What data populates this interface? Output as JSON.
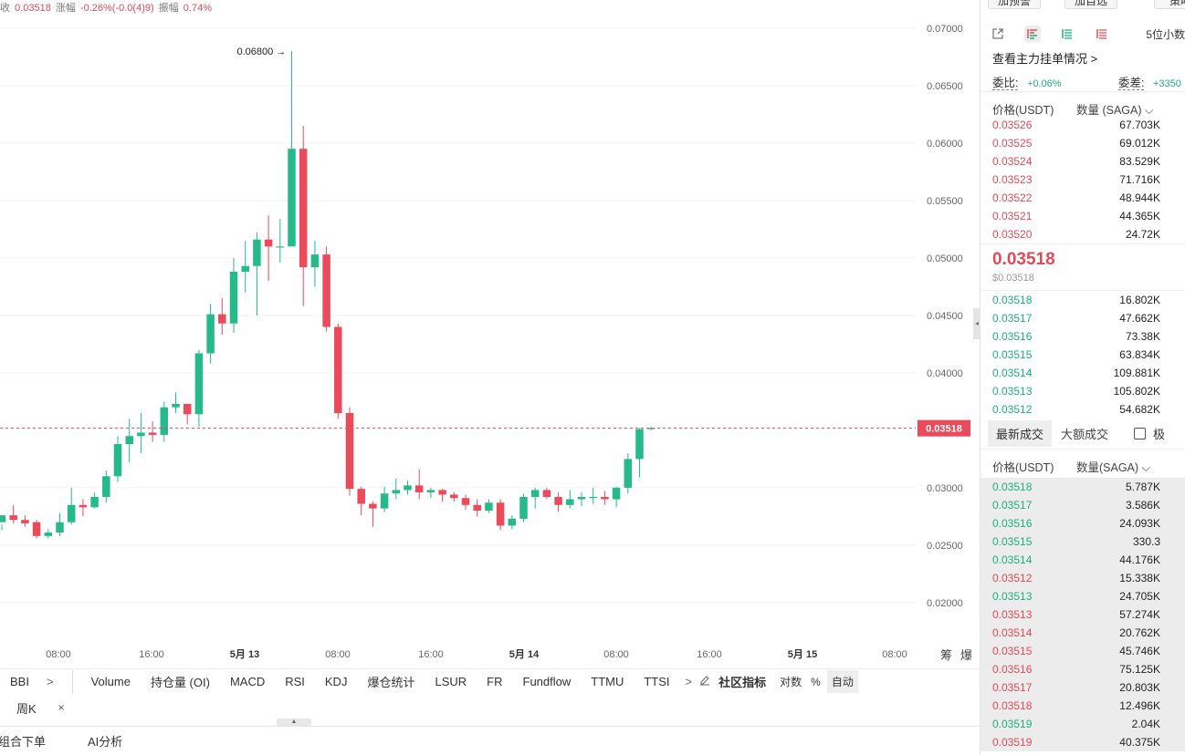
{
  "header": {
    "prefix": "收",
    "close_value": "0.03518",
    "change_label": "涨幅",
    "change_value": "-0.26%(-0.0(4)9)",
    "amplitude_label": "振幅",
    "amplitude_value": "0.74%"
  },
  "chart_data": {
    "type": "candlestick",
    "y_ticks": [
      "0.07000",
      "0.06500",
      "0.06000",
      "0.05500",
      "0.05000",
      "0.04500",
      "0.04000",
      "0.03518",
      "0.03000",
      "0.02500",
      "0.02000"
    ],
    "ylim": [
      0.0165,
      0.0715
    ],
    "x_tick_labels": [
      "08:00",
      "16:00",
      "5月 13",
      "08:00",
      "16:00",
      "5月 14",
      "08:00",
      "16:00",
      "5月 15",
      "08:00"
    ],
    "high_label": "0.06800",
    "current_price_label": "0.03518",
    "candles": [
      [
        0.027,
        0.0276,
        0.0268,
        0.0263
      ],
      [
        0.0276,
        0.0272,
        0.0285,
        0.0269
      ],
      [
        0.0272,
        0.0269,
        0.0276,
        0.0266
      ],
      [
        0.027,
        0.0258,
        0.0272,
        0.0256
      ],
      [
        0.0258,
        0.0261,
        0.0264,
        0.0256
      ],
      [
        0.0261,
        0.027,
        0.0278,
        0.0258
      ],
      [
        0.027,
        0.0285,
        0.03,
        0.0268
      ],
      [
        0.0285,
        0.0283,
        0.029,
        0.0275
      ],
      [
        0.0283,
        0.0292,
        0.0296,
        0.0282
      ],
      [
        0.0292,
        0.031,
        0.0315,
        0.0287
      ],
      [
        0.031,
        0.0338,
        0.0345,
        0.0305
      ],
      [
        0.0338,
        0.0345,
        0.036,
        0.0322
      ],
      [
        0.0345,
        0.0348,
        0.0365,
        0.033
      ],
      [
        0.0348,
        0.0346,
        0.0358,
        0.034
      ],
      [
        0.0346,
        0.037,
        0.0375,
        0.034
      ],
      [
        0.037,
        0.0373,
        0.0383,
        0.0365
      ],
      [
        0.0373,
        0.0364,
        0.0372,
        0.0355
      ],
      [
        0.0364,
        0.0417,
        0.042,
        0.0353
      ],
      [
        0.0417,
        0.0451,
        0.046,
        0.0408
      ],
      [
        0.0451,
        0.0443,
        0.0465,
        0.0433
      ],
      [
        0.0443,
        0.0488,
        0.05,
        0.0435
      ],
      [
        0.0488,
        0.0493,
        0.0515,
        0.047
      ],
      [
        0.0493,
        0.0516,
        0.0522,
        0.045
      ],
      [
        0.0516,
        0.051,
        0.0537,
        0.048
      ],
      [
        0.051,
        0.051,
        0.0534,
        0.0496
      ],
      [
        0.051,
        0.0595,
        0.068,
        0.0512
      ],
      [
        0.0595,
        0.0492,
        0.0615,
        0.0458
      ],
      [
        0.0492,
        0.0503,
        0.0515,
        0.0475
      ],
      [
        0.0503,
        0.044,
        0.051,
        0.0436
      ],
      [
        0.044,
        0.0365,
        0.0443,
        0.036
      ],
      [
        0.0365,
        0.0299,
        0.037,
        0.0293
      ],
      [
        0.0299,
        0.0286,
        0.0301,
        0.0276
      ],
      [
        0.0286,
        0.0282,
        0.0288,
        0.0266
      ],
      [
        0.0282,
        0.0295,
        0.0301,
        0.0279
      ],
      [
        0.0295,
        0.0298,
        0.0308,
        0.029
      ],
      [
        0.0298,
        0.0302,
        0.0306,
        0.0294
      ],
      [
        0.0302,
        0.0296,
        0.0316,
        0.029
      ],
      [
        0.0296,
        0.0298,
        0.03,
        0.0291
      ],
      [
        0.0298,
        0.0294,
        0.0299,
        0.0288
      ],
      [
        0.0294,
        0.0291,
        0.0296,
        0.0288
      ],
      [
        0.0291,
        0.0285,
        0.0294,
        0.0281
      ],
      [
        0.0285,
        0.028,
        0.029,
        0.0275
      ],
      [
        0.028,
        0.0287,
        0.029,
        0.0278
      ],
      [
        0.0287,
        0.0267,
        0.029,
        0.0263
      ],
      [
        0.0267,
        0.0273,
        0.0276,
        0.0264
      ],
      [
        0.0273,
        0.0292,
        0.0295,
        0.027
      ],
      [
        0.0292,
        0.0298,
        0.03,
        0.0282
      ],
      [
        0.0298,
        0.0292,
        0.03,
        0.029
      ],
      [
        0.0292,
        0.0285,
        0.0296,
        0.0279
      ],
      [
        0.0285,
        0.029,
        0.0298,
        0.0282
      ],
      [
        0.029,
        0.0292,
        0.0296,
        0.0284
      ],
      [
        0.0292,
        0.0292,
        0.03,
        0.0286
      ],
      [
        0.0292,
        0.029,
        0.0297,
        0.0285
      ],
      [
        0.029,
        0.03,
        0.0301,
        0.0283
      ],
      [
        0.03,
        0.0325,
        0.033,
        0.0295
      ],
      [
        0.0325,
        0.0351,
        0.0352,
        0.0309
      ],
      [
        0.0351,
        0.0352,
        0.0353,
        0.035
      ]
    ]
  },
  "indicators": {
    "bbi": "BBI",
    "more_left": ">",
    "items": [
      "Volume",
      "持仓量 (OI)",
      "MACD",
      "RSI",
      "KDJ",
      "爆仓统计",
      "LSUR",
      "FR",
      "Fundflow",
      "TTMU",
      "TTSI"
    ],
    "more_right": ">",
    "community": "社区指标",
    "log": "对数",
    "percent": "%",
    "auto": "自动",
    "right_labels": [
      "筹",
      "爆"
    ]
  },
  "period_tag": "周K",
  "period_close": "×",
  "bottom_tabs": [
    "组合下单",
    "AI分析"
  ],
  "right_panel": {
    "buttons": [
      "加预警",
      "加自选",
      "策略"
    ],
    "decimals": "5位小数",
    "main_orders_link": "查看主力挂单情况 >",
    "ratio_label": "委比:",
    "ratio_value": "+0.06%",
    "diff_label": "委差:",
    "diff_value": "+3350",
    "col_price": "价格(USDT)",
    "col_qty": "数量 (SAGA)",
    "col_chevron": "⌵",
    "asks": [
      {
        "p": "0.03526",
        "q": "67.703K"
      },
      {
        "p": "0.03525",
        "q": "69.012K"
      },
      {
        "p": "0.03524",
        "q": "83.529K"
      },
      {
        "p": "0.03523",
        "q": "71.716K"
      },
      {
        "p": "0.03522",
        "q": "48.944K"
      },
      {
        "p": "0.03521",
        "q": "44.365K"
      },
      {
        "p": "0.03520",
        "q": "24.72K"
      }
    ],
    "last_price": "0.03518",
    "last_price_usd": "$0.03518",
    "bids": [
      {
        "p": "0.03518",
        "q": "16.802K"
      },
      {
        "p": "0.03517",
        "q": "47.662K"
      },
      {
        "p": "0.03516",
        "q": "73.38K"
      },
      {
        "p": "0.03515",
        "q": "63.834K"
      },
      {
        "p": "0.03514",
        "q": "109.881K"
      },
      {
        "p": "0.03513",
        "q": "105.802K"
      },
      {
        "p": "0.03512",
        "q": "54.682K"
      }
    ],
    "trade_tab_latest": "最新成交",
    "trade_tab_large": "大额成交",
    "trade_checkbox_label": "极",
    "trade_col_price": "价格(USDT)",
    "trade_col_qty": "数量(SAGA)",
    "trades": [
      {
        "p": "0.03518",
        "q": "5.787K",
        "side": "buy"
      },
      {
        "p": "0.03517",
        "q": "3.586K",
        "side": "buy"
      },
      {
        "p": "0.03516",
        "q": "24.093K",
        "side": "buy"
      },
      {
        "p": "0.03515",
        "q": "330.3",
        "side": "buy"
      },
      {
        "p": "0.03514",
        "q": "44.176K",
        "side": "buy"
      },
      {
        "p": "0.03512",
        "q": "15.338K",
        "side": "sell"
      },
      {
        "p": "0.03513",
        "q": "24.705K",
        "side": "buy"
      },
      {
        "p": "0.03513",
        "q": "57.274K",
        "side": "sell"
      },
      {
        "p": "0.03514",
        "q": "20.762K",
        "side": "sell"
      },
      {
        "p": "0.03515",
        "q": "45.746K",
        "side": "sell"
      },
      {
        "p": "0.03516",
        "q": "75.125K",
        "side": "sell"
      },
      {
        "p": "0.03517",
        "q": "20.803K",
        "side": "sell"
      },
      {
        "p": "0.03518",
        "q": "12.496K",
        "side": "sell"
      },
      {
        "p": "0.03519",
        "q": "2.04K",
        "side": "buy"
      },
      {
        "p": "0.03519",
        "q": "40.375K",
        "side": "sell"
      }
    ]
  },
  "colors": {
    "up": "#26b98a",
    "down": "#ea4a5a",
    "grid": "#f2f2f2",
    "axis_text": "#666666"
  }
}
